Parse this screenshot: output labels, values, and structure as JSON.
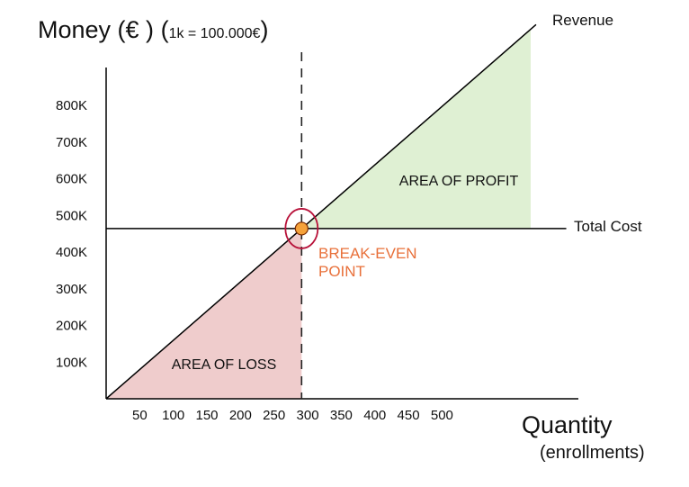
{
  "chart_data": {
    "type": "line",
    "title": "",
    "ylabel": "Money (€ )",
    "ylabel_note": "1k = 100.000€",
    "xlabel": "Quantity",
    "xlabel_note": "(enrollments)",
    "x_ticks": [
      50,
      100,
      150,
      200,
      250,
      300,
      350,
      400,
      450,
      500
    ],
    "y_ticks": [
      {
        "value": 100,
        "label": "100K"
      },
      {
        "value": 200,
        "label": "200K"
      },
      {
        "value": 300,
        "label": "300K"
      },
      {
        "value": 400,
        "label": "400K"
      },
      {
        "value": 500,
        "label": "500K"
      },
      {
        "value": 600,
        "label": "600K"
      },
      {
        "value": 700,
        "label": "700K"
      },
      {
        "value": 800,
        "label": "800K"
      }
    ],
    "xlim": [
      0,
      700
    ],
    "ylim": [
      0,
      1000
    ],
    "series": [
      {
        "name": "Revenue",
        "points": [
          [
            0,
            0
          ],
          [
            640,
            1020
          ]
        ],
        "color": "#000000"
      },
      {
        "name": "Total Cost",
        "points": [
          [
            0,
            464
          ],
          [
            685,
            464
          ]
        ],
        "color": "#000000"
      }
    ],
    "break_even": {
      "x": 291,
      "y": 464,
      "label_line1": "BREAK-EVEN",
      "label_line2": "POINT",
      "color": "#e8703a"
    },
    "regions": [
      {
        "label": "AREA OF LOSS",
        "color": "#efcccc"
      },
      {
        "label": "AREA OF PROFIT",
        "color": "#dff0d3"
      }
    ],
    "grid": false
  }
}
